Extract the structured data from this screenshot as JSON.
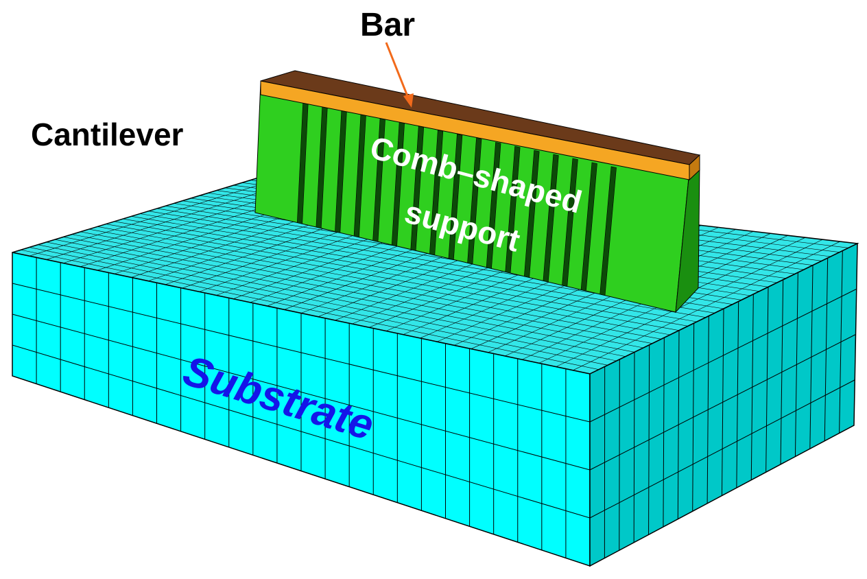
{
  "labels": {
    "bar": "Bar",
    "cantilever": "Cantilever",
    "comb_line1": "Comb–shaped",
    "comb_line2": "support",
    "substrate": "Substrate"
  }
}
